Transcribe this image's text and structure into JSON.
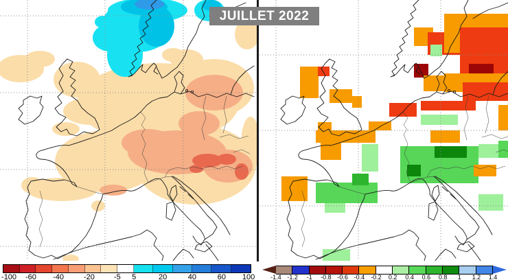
{
  "title": "JUILLET 2022",
  "palette": {
    "tan": "#fbdda9",
    "salmon": "#f5ae85",
    "redspot": "#e8694e",
    "cyan": "#18e2f2",
    "deepcyan": "#00c2e6",
    "blue": "#2f9ae8",
    "o": "#f79b00",
    "r": "#ee3b11",
    "dr": "#9c0606",
    "g1": "#9ef09b",
    "g2": "#57d657",
    "g3": "#2eb52e",
    "g4": "#0c870c"
  },
  "left_map": {
    "name": "precipitation-anomaly-map"
  },
  "right_map": {
    "name": "temperature-anomaly-map",
    "cells": [
      [
        "o",
        225,
        40,
        28,
        27
      ],
      [
        "r",
        245,
        47,
        47,
        33
      ],
      [
        "o",
        269,
        20,
        93,
        57
      ],
      [
        "r",
        292,
        40,
        70,
        67
      ],
      [
        "dr",
        305,
        93,
        36,
        17
      ],
      [
        "dr",
        225,
        93,
        21,
        20
      ],
      [
        "g1",
        249,
        65,
        17,
        17
      ],
      [
        "o",
        269,
        107,
        93,
        27
      ],
      [
        "r",
        296,
        120,
        66,
        27
      ],
      [
        "o",
        348,
        153,
        14,
        37
      ],
      [
        "o",
        59,
        97,
        27,
        46
      ],
      [
        "r",
        85,
        97,
        17,
        14
      ],
      [
        "o",
        102,
        130,
        33,
        20
      ],
      [
        "o",
        135,
        140,
        14,
        17
      ],
      [
        "o",
        239,
        110,
        30,
        23
      ],
      [
        "r",
        189,
        150,
        40,
        20
      ],
      [
        "o",
        159,
        177,
        33,
        13
      ],
      [
        "r",
        235,
        147,
        80,
        14
      ],
      [
        "g1",
        235,
        167,
        54,
        15
      ],
      [
        "o",
        82,
        190,
        87,
        18
      ],
      [
        "o",
        249,
        190,
        43,
        18
      ],
      [
        "o",
        89,
        203,
        30,
        30
      ],
      [
        "o",
        85,
        178,
        20,
        14
      ],
      [
        "g1",
        149,
        210,
        24,
        40
      ],
      [
        "g2",
        205,
        213,
        114,
        54
      ],
      [
        "g4",
        255,
        213,
        47,
        17
      ],
      [
        "g4",
        215,
        240,
        20,
        17
      ],
      [
        "g1",
        319,
        210,
        30,
        20
      ],
      [
        "o",
        32,
        257,
        38,
        36
      ],
      [
        "g2",
        82,
        266,
        90,
        30
      ],
      [
        "g3",
        135,
        253,
        24,
        17
      ],
      [
        "g1",
        95,
        296,
        30,
        14
      ],
      [
        "o",
        312,
        240,
        33,
        17
      ],
      [
        "g1",
        319,
        283,
        36,
        24
      ],
      [
        "g1",
        92,
        363,
        40,
        17
      ],
      [
        "g2",
        348,
        205,
        14,
        25
      ]
    ]
  },
  "left_colorbar": {
    "segments": [
      {
        "color": "#a81016",
        "w": 6.59
      },
      {
        "color": "#cf2027",
        "w": 6.59
      },
      {
        "color": "#e4452e",
        "w": 6.59
      },
      {
        "color": "#f3764f",
        "w": 6.59
      },
      {
        "color": "#f79e77",
        "w": 6.59
      },
      {
        "color": "#fbc392",
        "w": 6.59
      },
      {
        "color": "#fde3b6",
        "w": 6.59
      },
      {
        "color": "#ffffff",
        "w": 6.7
      },
      {
        "color": "#16e1ee",
        "w": 7.87
      },
      {
        "color": "#00c9ef",
        "w": 7.87
      },
      {
        "color": "#33a2e8",
        "w": 7.87
      },
      {
        "color": "#247ddb",
        "w": 7.87
      },
      {
        "color": "#1757cb",
        "w": 7.87
      },
      {
        "color": "#0c38b8",
        "w": 7.86
      }
    ],
    "ticks": [
      {
        "label": "-100",
        "pos": 2.5
      },
      {
        "label": "-60",
        "pos": 11.3
      },
      {
        "label": "-40",
        "pos": 22.4
      },
      {
        "label": "-20",
        "pos": 34.8
      },
      {
        "label": "-5",
        "pos": 46.1
      },
      {
        "label": "5",
        "pos": 52.8
      },
      {
        "label": "20",
        "pos": 64.4
      },
      {
        "label": "40",
        "pos": 76.2
      },
      {
        "label": "60",
        "pos": 88.1
      },
      {
        "label": "100",
        "pos": 98.9
      }
    ]
  },
  "right_colorbar": {
    "arrow_left": "#552015",
    "arrow_right": "#2e6ae0",
    "segments": [
      "#a8897a",
      "#2233cc",
      "#a30c0c",
      "#b51209",
      "#e03a0c",
      "#f79e00",
      "#ffffff",
      "#abeea4",
      "#58d958",
      "#2eb52e",
      "#0f8c0f",
      "#a8cef0",
      "#4286e8"
    ],
    "ticks": [
      {
        "label": "-1.4",
        "pos": 5.6
      },
      {
        "label": "-1.2",
        "pos": 12.4
      },
      {
        "label": "-1",
        "pos": 19.3
      },
      {
        "label": "-0.8",
        "pos": 26.1
      },
      {
        "label": "-0.6",
        "pos": 32.9
      },
      {
        "label": "-0.4",
        "pos": 39.7
      },
      {
        "label": "-0.2",
        "pos": 46.6
      },
      {
        "label": "0.2",
        "pos": 53.4
      },
      {
        "label": "0.4",
        "pos": 60.3
      },
      {
        "label": "0.6",
        "pos": 67.1
      },
      {
        "label": "0.8",
        "pos": 73.9
      },
      {
        "label": "1",
        "pos": 80.7
      },
      {
        "label": "1.2",
        "pos": 87.6
      },
      {
        "label": "1.4",
        "pos": 94.4
      }
    ]
  }
}
